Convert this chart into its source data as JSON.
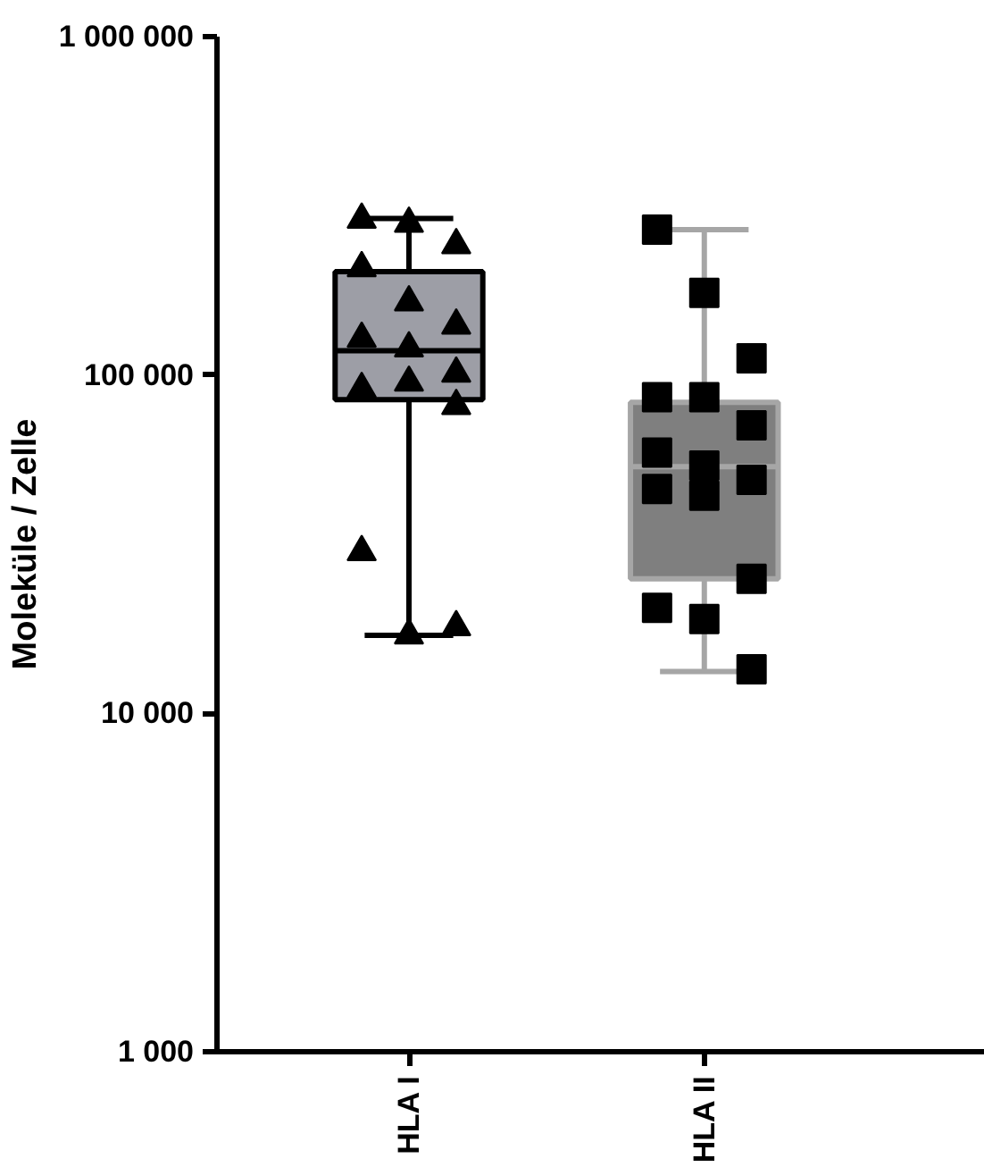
{
  "chart_data": {
    "type": "box",
    "ylabel": "Moleküle / Zelle",
    "categories": [
      "HLA I",
      "HLA II"
    ],
    "log": true,
    "ylim": [
      1000,
      1000000
    ],
    "yticks": [
      {
        "value": 1000,
        "label": "1 000"
      },
      {
        "value": 10000,
        "label": "10 000"
      },
      {
        "value": 100000,
        "label": "100 000"
      },
      {
        "value": 1000000,
        "label": "1 000 000"
      }
    ],
    "grid": false,
    "series": [
      {
        "color": "#9d9ea6",
        "boxes": [
          {
            "low": 17000,
            "q1": 84500,
            "median": 118000,
            "q3": 202000,
            "high": 290000
          },
          null
        ]
      },
      {
        "color": "#7f7f7f",
        "boxes": [
          null,
          {
            "low": 13300,
            "q1": 25000,
            "median": 53600,
            "q3": 83000,
            "high": 269000
          }
        ]
      },
      {
        "type": "scatter",
        "marker": "triangle",
        "color": "#000000",
        "x": [
          "HLA I",
          "HLA I",
          "HLA I",
          "HLA I",
          "HLA I",
          "HLA I",
          "HLA I",
          "HLA I",
          "HLA I",
          "HLA I",
          "HLA I",
          "HLA I",
          "HLA I",
          "HLA I",
          "HLA I"
        ],
        "values": [
          288000,
          280000,
          242000,
          207000,
          164000,
          140000,
          128000,
          120000,
          101000,
          91000,
          95000,
          81000,
          30000,
          17000,
          18000
        ]
      },
      {
        "type": "scatter",
        "marker": "square",
        "color": "#000000",
        "x": [
          "HLA II",
          "HLA II",
          "HLA II",
          "HLA II",
          "HLA II",
          "HLA II",
          "HLA II",
          "HLA II",
          "HLA II",
          "HLA II",
          "HLA II",
          "HLA II",
          "HLA II",
          "HLA II",
          "HLA II"
        ],
        "values": [
          269000,
          175000,
          112000,
          86000,
          86000,
          71000,
          59000,
          54000,
          49000,
          46000,
          44000,
          25000,
          20500,
          19000,
          13500
        ]
      }
    ]
  }
}
